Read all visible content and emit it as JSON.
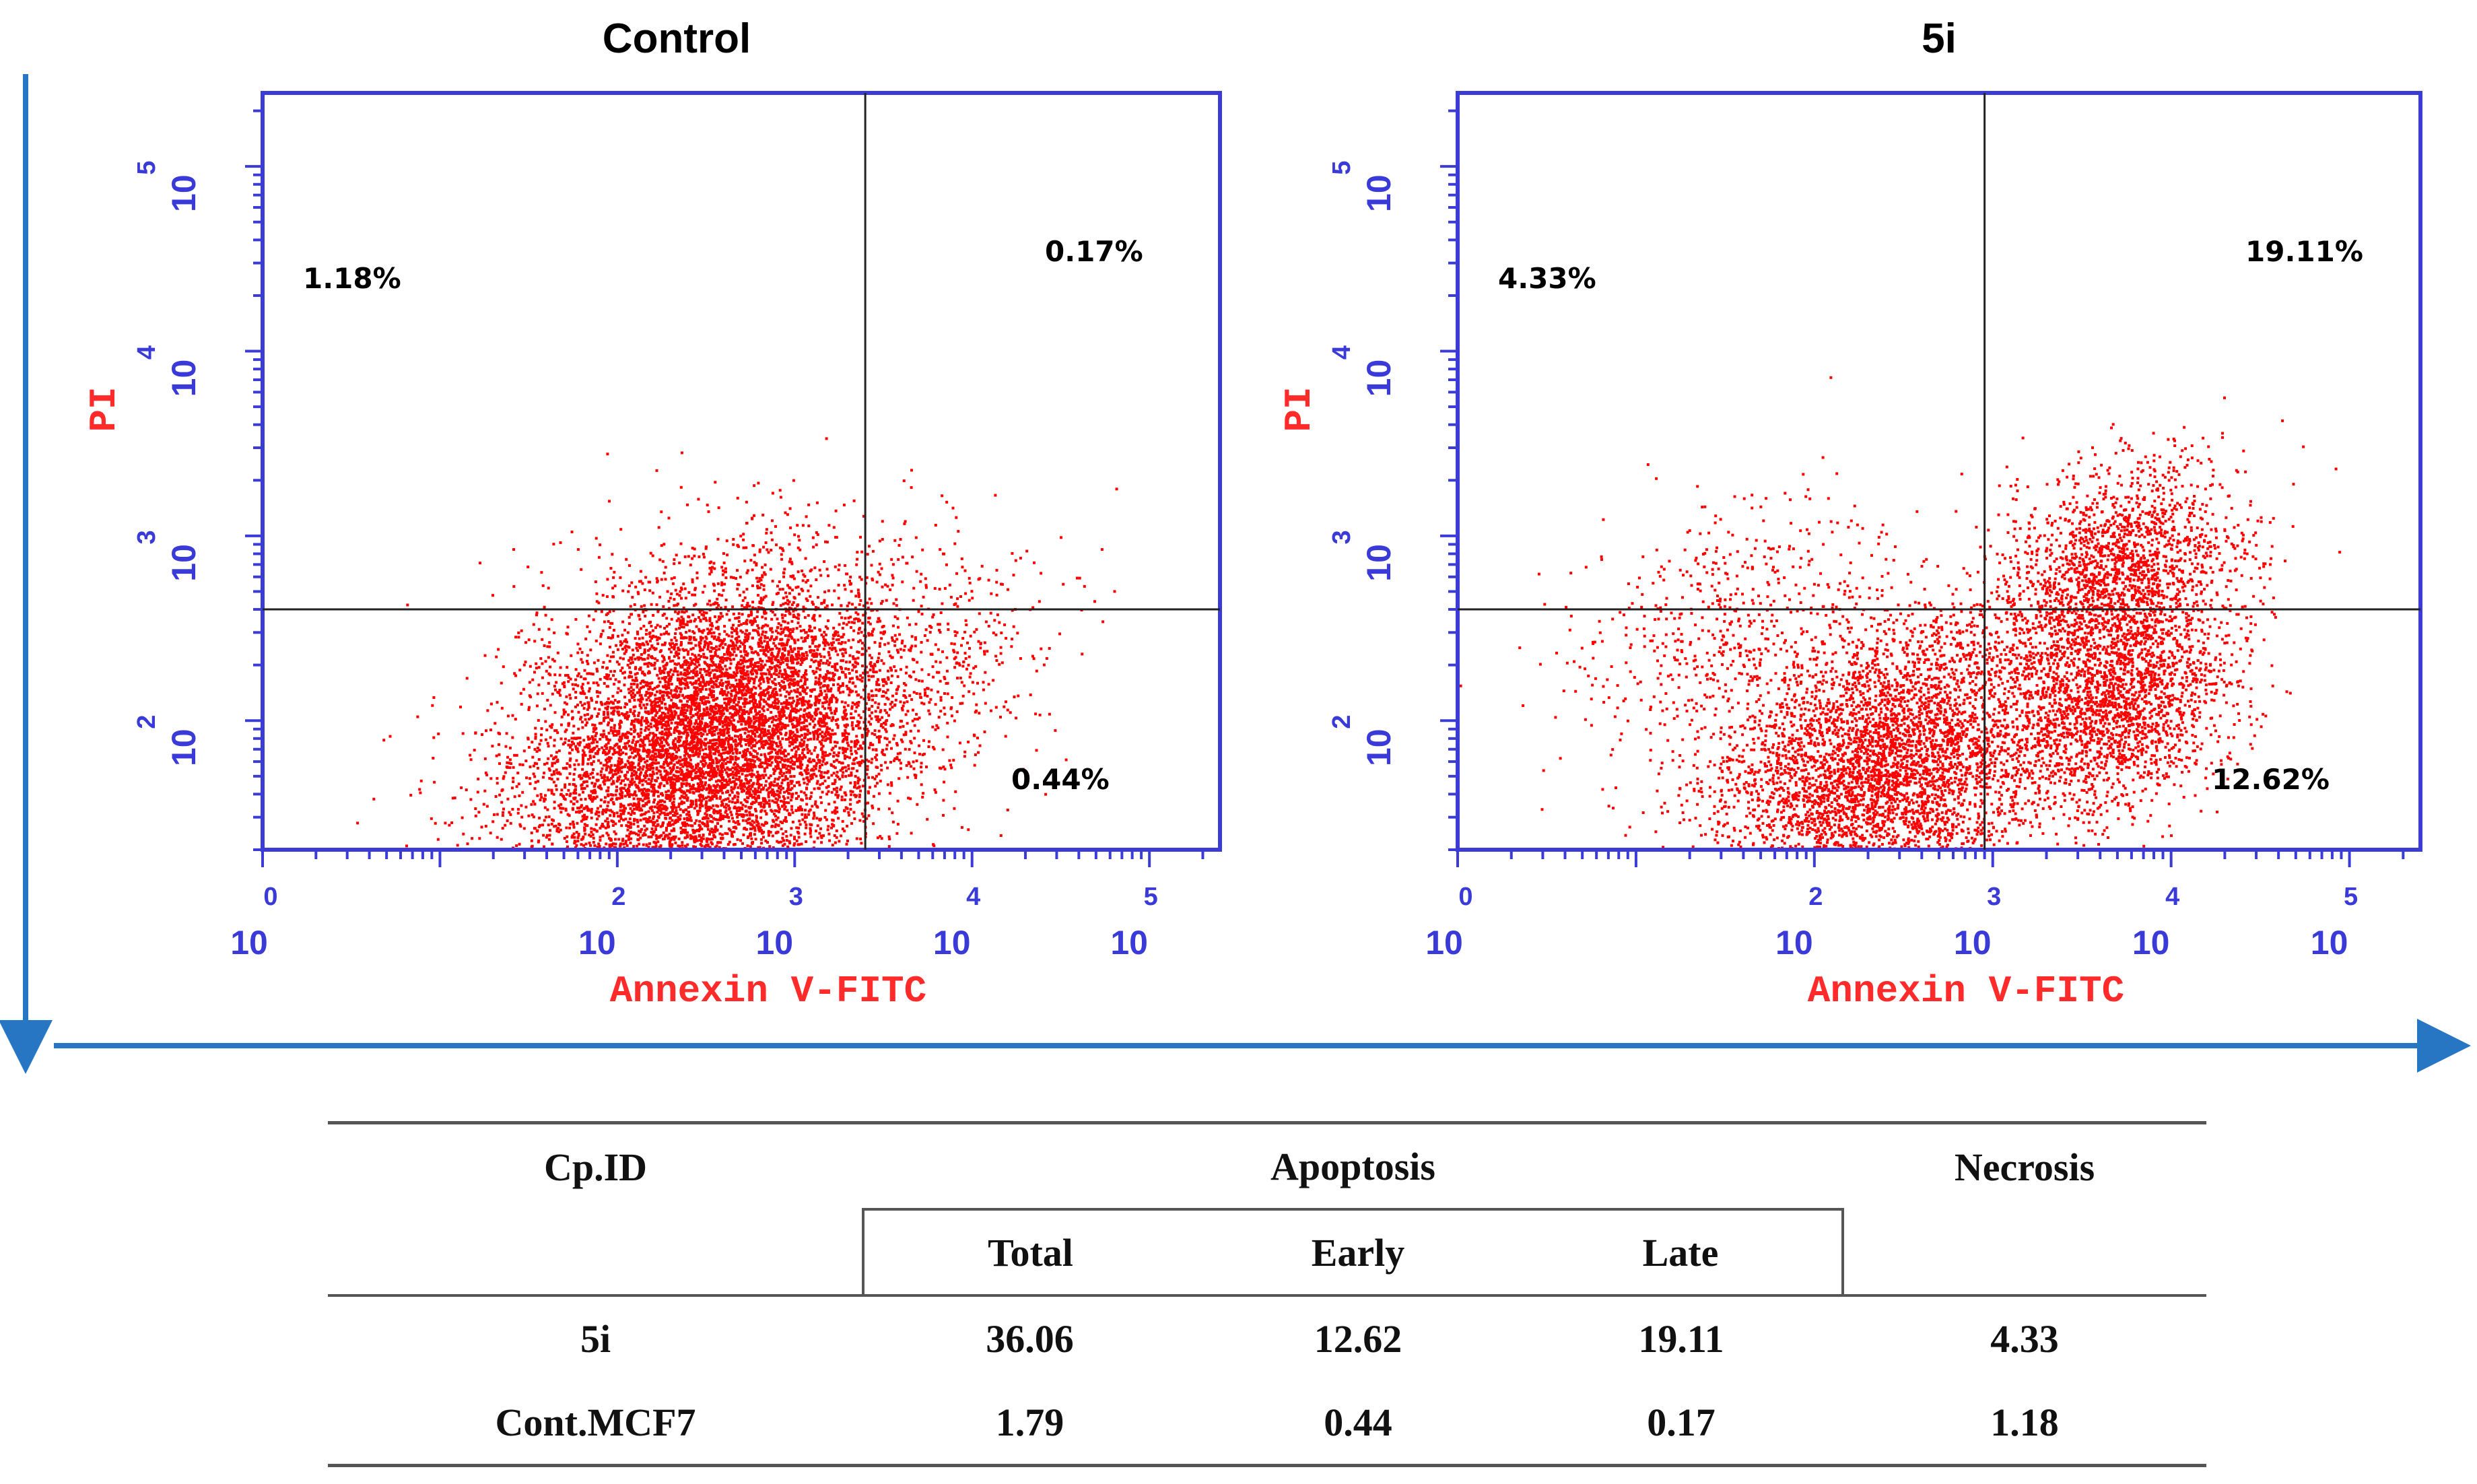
{
  "figure": {
    "axis_arrow_color": "#2676c4",
    "plot_frame_color": "#3b3bd6",
    "dot_color": "#ff0000"
  },
  "chart_data": [
    {
      "type": "scatter",
      "title": "Control",
      "xlabel": "Annexin V-FITC",
      "ylabel": "PI",
      "x_scale": "log",
      "y_scale": "log",
      "xlim": [
        1,
        250000
      ],
      "ylim": [
        20,
        250000
      ],
      "x_ticks": [
        {
          "base": "10",
          "exp": "0"
        },
        {
          "base": "10",
          "exp": "2"
        },
        {
          "base": "10",
          "exp": "3"
        },
        {
          "base": "10",
          "exp": "4"
        },
        {
          "base": "10",
          "exp": "5"
        }
      ],
      "y_ticks": [
        {
          "base": "10",
          "exp": "2"
        },
        {
          "base": "10",
          "exp": "3"
        },
        {
          "base": "10",
          "exp": "4"
        },
        {
          "base": "10",
          "exp": "5"
        }
      ],
      "gate": {
        "x": 2500,
        "y": 400
      },
      "quadrants": {
        "upper_left": "1.18%",
        "upper_right": "0.17%",
        "lower_right": "0.44%"
      },
      "populations": [
        {
          "center": [
            350,
            80
          ],
          "spread": [
            1.0,
            0.8
          ],
          "weight": 0.97
        },
        {
          "center": [
            6000,
            200
          ],
          "spread": [
            0.7,
            0.5
          ],
          "weight": 0.03
        }
      ]
    },
    {
      "type": "scatter",
      "title": "5i",
      "xlabel": "Annexin V-FITC",
      "ylabel": "PI",
      "x_scale": "log",
      "y_scale": "log",
      "xlim": [
        1,
        250000
      ],
      "ylim": [
        20,
        250000
      ],
      "x_ticks": [
        {
          "base": "10",
          "exp": "0"
        },
        {
          "base": "10",
          "exp": "2"
        },
        {
          "base": "10",
          "exp": "3"
        },
        {
          "base": "10",
          "exp": "4"
        },
        {
          "base": "10",
          "exp": "5"
        }
      ],
      "y_ticks": [
        {
          "base": "10",
          "exp": "2"
        },
        {
          "base": "10",
          "exp": "3"
        },
        {
          "base": "10",
          "exp": "4"
        },
        {
          "base": "10",
          "exp": "5"
        }
      ],
      "gate": {
        "x": 900,
        "y": 400
      },
      "quadrants": {
        "upper_left": "4.33%",
        "upper_right": "19.11%",
        "lower_right": "12.62%"
      },
      "populations": [
        {
          "center": [
            250,
            60
          ],
          "spread": [
            0.9,
            0.7
          ],
          "weight": 0.52
        },
        {
          "center": [
            5000,
            600
          ],
          "spread": [
            0.6,
            0.55
          ],
          "weight": 0.22
        },
        {
          "center": [
            5000,
            120
          ],
          "spread": [
            0.6,
            0.5
          ],
          "weight": 0.2
        },
        {
          "center": [
            30,
            300
          ],
          "spread": [
            0.8,
            0.6
          ],
          "weight": 0.06
        }
      ]
    }
  ],
  "table": {
    "headers": {
      "cpid": "Cp.ID",
      "apoptosis": "Apoptosis",
      "necrosis": "Necrosis",
      "total": "Total",
      "early": "Early",
      "late": "Late"
    },
    "rows": [
      {
        "id": "5i",
        "total": "36.06",
        "early": "12.62",
        "late": "19.11",
        "necrosis": "4.33"
      },
      {
        "id": "Cont.MCF7",
        "total": "1.79",
        "early": "0.44",
        "late": "0.17",
        "necrosis": "1.18"
      }
    ]
  }
}
